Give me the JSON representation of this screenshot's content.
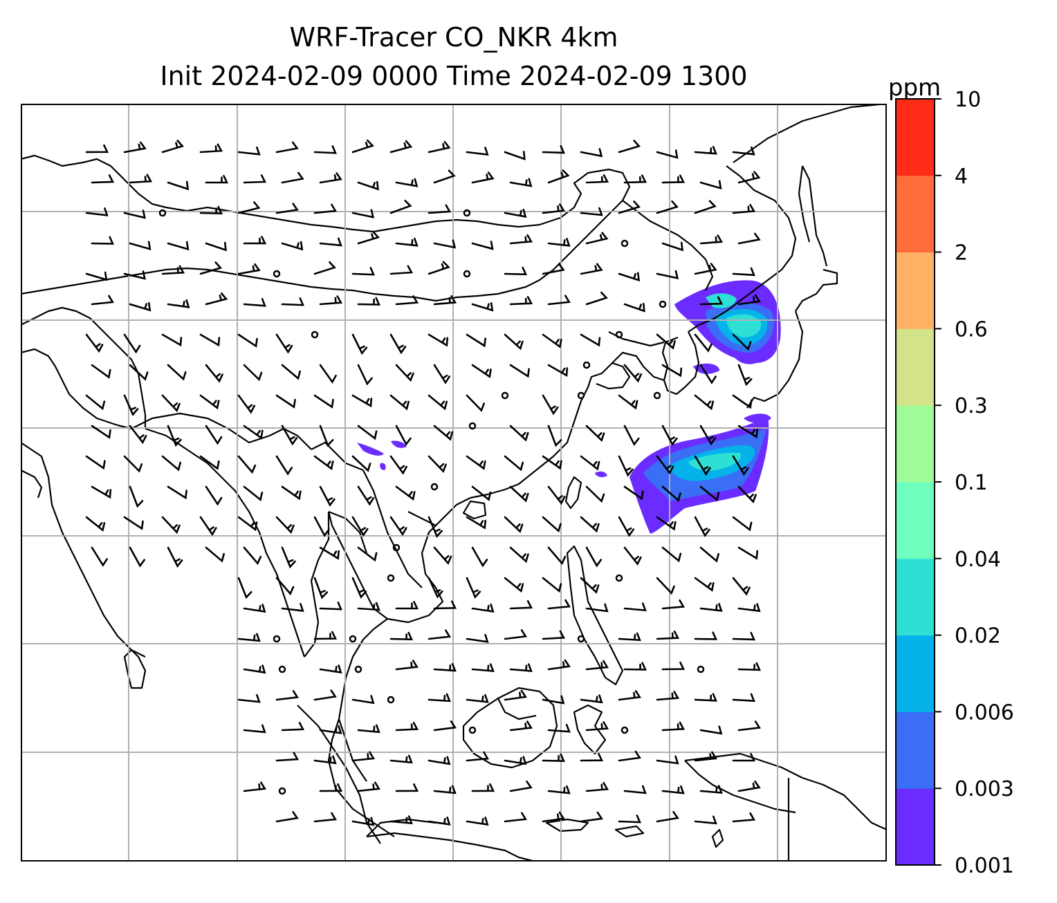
{
  "title": {
    "line1": "WRF-Tracer CO_NKR 4km",
    "line2": "Init 2024-02-09 0000 Time 2024-02-09 1300"
  },
  "colorbar": {
    "unit": "ppm",
    "ticks": [
      "0.001",
      "0.003",
      "0.006",
      "0.02",
      "0.04",
      "0.1",
      "0.3",
      "0.6",
      "2",
      "4",
      "10"
    ],
    "colors": [
      "#6a2cff",
      "#3a6ef5",
      "#06b2ea",
      "#2ee0d4",
      "#6effbf",
      "#9efc98",
      "#d2e38a",
      "#ffb266",
      "#ff6e3a",
      "#ff2d18"
    ]
  },
  "map": {
    "grid_color": "#b0b0b0",
    "coast_color": "#000000",
    "plume_colors": {
      "outer": "#6a2cff",
      "mid": "#3a6ef5",
      "inner": "#06b2ea",
      "core": "#2ee0d4"
    }
  }
}
